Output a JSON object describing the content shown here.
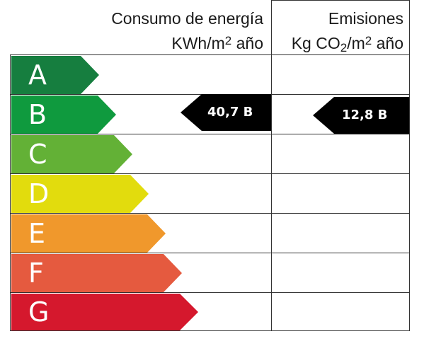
{
  "headers": {
    "energy_line1": "Consumo de energía",
    "energy_line2_pre": "KWh/m",
    "energy_line2_sup": "2",
    "energy_line2_post": " año",
    "emissions_line1": "Emisiones",
    "emissions_line2_pre": "Kg CO",
    "emissions_line2_sub": "2",
    "emissions_line2_mid": "/m",
    "emissions_line2_sup": "2",
    "emissions_line2_post": " año"
  },
  "bands": [
    {
      "letter": "A",
      "color": "#167e3f"
    },
    {
      "letter": "B",
      "color": "#0f9a3e"
    },
    {
      "letter": "C",
      "color": "#63b136"
    },
    {
      "letter": "D",
      "color": "#e2dc0d"
    },
    {
      "letter": "E",
      "color": "#f0982c"
    },
    {
      "letter": "F",
      "color": "#e55a3f"
    },
    {
      "letter": "G",
      "color": "#d5182d"
    }
  ],
  "energy_rating": {
    "value": "40,7 B",
    "band": "B"
  },
  "emissions_rating": {
    "value": "12,8 B",
    "band": "B"
  }
}
